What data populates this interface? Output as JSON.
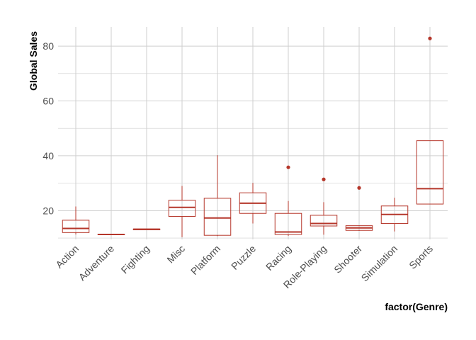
{
  "chart_data": {
    "type": "boxplot",
    "xlabel": "factor(Genre)",
    "ylabel": "Global Sales",
    "ylim": [
      9.5,
      87
    ],
    "yticks": [
      20,
      40,
      60,
      80
    ],
    "grid": true,
    "legend": "none",
    "colors": {
      "box": "#b5362a",
      "grid": "#cfcfcf",
      "background": "#ffffff"
    },
    "categories": [
      "Action",
      "Adventure",
      "Fighting",
      "Misc",
      "Platform",
      "Puzzle",
      "Racing",
      "Role-Playing",
      "Shooter",
      "Simulation",
      "Sports"
    ],
    "boxes": [
      {
        "category": "Action",
        "whisker_low": 11.3,
        "q1": 12.0,
        "median": 13.5,
        "q3": 16.5,
        "whisker_high": 21.5,
        "outliers": []
      },
      {
        "category": "Adventure",
        "whisker_low": 11.2,
        "q1": 11.2,
        "median": 11.3,
        "q3": 11.4,
        "whisker_high": 11.4,
        "outliers": []
      },
      {
        "category": "Fighting",
        "whisker_low": 13.0,
        "q1": 13.0,
        "median": 13.2,
        "q3": 13.3,
        "whisker_high": 13.3,
        "outliers": []
      },
      {
        "category": "Misc",
        "whisker_low": 10.3,
        "q1": 17.9,
        "median": 21.2,
        "q3": 23.8,
        "whisker_high": 29.0,
        "outliers": []
      },
      {
        "category": "Platform",
        "whisker_low": 10.7,
        "q1": 11.0,
        "median": 17.3,
        "q3": 24.5,
        "whisker_high": 40.2,
        "outliers": []
      },
      {
        "category": "Puzzle",
        "whisker_low": 15.3,
        "q1": 19.0,
        "median": 22.7,
        "q3": 26.5,
        "whisker_high": 30.1,
        "outliers": []
      },
      {
        "category": "Racing",
        "whisker_low": 10.8,
        "q1": 11.3,
        "median": 12.2,
        "q3": 19.0,
        "whisker_high": 23.5,
        "outliers": [
          35.8
        ]
      },
      {
        "category": "Role-Playing",
        "whisker_low": 11.2,
        "q1": 14.4,
        "median": 15.3,
        "q3": 18.3,
        "whisker_high": 23.1,
        "outliers": [
          31.4
        ]
      },
      {
        "category": "Shooter",
        "whisker_low": 12.6,
        "q1": 12.8,
        "median": 13.7,
        "q3": 14.5,
        "whisker_high": 14.6,
        "outliers": [
          28.3
        ]
      },
      {
        "category": "Simulation",
        "whisker_low": 12.4,
        "q1": 15.3,
        "median": 18.6,
        "q3": 21.7,
        "whisker_high": 24.7,
        "outliers": []
      },
      {
        "category": "Sports",
        "whisker_low": 22.4,
        "q1": 22.4,
        "median": 28.0,
        "q3": 45.5,
        "whisker_high": 45.5,
        "outliers": [
          82.8
        ]
      }
    ]
  }
}
